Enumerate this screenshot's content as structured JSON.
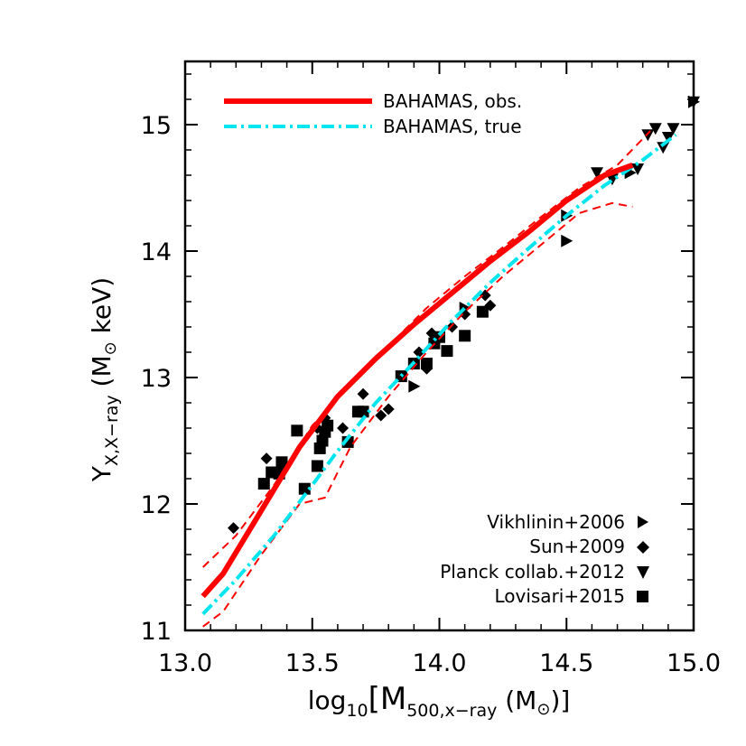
{
  "chart_data": {
    "type": "scatter",
    "xlabel": {
      "pre": "log",
      "sub": "10",
      "post": "[M",
      "sub2": "500,x−ray",
      "unit": " (M",
      "sun": "⊙",
      "end": ")]"
    },
    "ylabel": {
      "main": "Y",
      "sub": "X,X−ray",
      "unit": " (M",
      "sun": "⊙",
      "end": " keV)"
    },
    "xlim": [
      13.0,
      15.0
    ],
    "ylim": [
      11.0,
      15.5
    ],
    "xticks": [
      "13.0",
      "13.5",
      "14.0",
      "14.5",
      "15.0"
    ],
    "yticks": [
      "11",
      "12",
      "13",
      "14",
      "15"
    ],
    "legend_lines": [
      {
        "label": "BAHAMAS, obs.",
        "color": "#ff0000",
        "style": "solid"
      },
      {
        "label": "BAHAMAS, true",
        "color": "#00e5ee",
        "style": "dashdot"
      }
    ],
    "legend_points": [
      {
        "label": "Vikhlinin+2006",
        "marker": "triangle-right"
      },
      {
        "label": "Sun+2009",
        "marker": "diamond"
      },
      {
        "label": "Planck collab.+2012",
        "marker": "triangle-down"
      },
      {
        "label": "Lovisari+2015",
        "marker": "square"
      }
    ],
    "series": [
      {
        "name": "BAHAMAS, obs.",
        "kind": "line",
        "color": "#ff0000",
        "x": [
          13.07,
          13.15,
          13.3,
          13.45,
          13.6,
          13.75,
          13.9,
          14.05,
          14.2,
          14.35,
          14.5,
          14.65,
          14.76
        ],
        "y": [
          11.27,
          11.45,
          11.95,
          12.45,
          12.85,
          13.15,
          13.42,
          13.67,
          13.92,
          14.15,
          14.4,
          14.6,
          14.68
        ]
      },
      {
        "name": "BAHAMAS, true",
        "kind": "line",
        "color": "#00e5ee",
        "x": [
          13.07,
          13.2,
          13.35,
          13.5,
          13.6,
          13.75,
          13.9,
          14.05,
          14.2,
          14.35,
          14.5,
          14.65,
          14.8,
          14.93
        ],
        "y": [
          11.13,
          11.4,
          11.75,
          12.15,
          12.42,
          12.8,
          13.12,
          13.45,
          13.75,
          14.02,
          14.28,
          14.52,
          14.72,
          14.92
        ]
      },
      {
        "name": "upper scatter",
        "kind": "dashed",
        "color": "#ff0000",
        "x": [
          13.07,
          13.2,
          13.35,
          13.5,
          13.65,
          13.8,
          13.95,
          14.1,
          14.25,
          14.4,
          14.55,
          14.7,
          14.83
        ],
        "y": [
          11.5,
          11.75,
          12.15,
          12.62,
          12.95,
          13.25,
          13.55,
          13.8,
          14.03,
          14.27,
          14.5,
          14.68,
          14.95
        ]
      },
      {
        "name": "lower scatter",
        "kind": "dashed",
        "color": "#ff0000",
        "x": [
          13.07,
          13.15,
          13.3,
          13.45,
          13.55,
          13.65,
          13.8,
          13.95,
          14.1,
          14.25,
          14.4,
          14.55,
          14.68,
          14.76
        ],
        "y": [
          11.03,
          11.15,
          11.6,
          12.0,
          12.05,
          12.45,
          12.85,
          13.2,
          13.52,
          13.8,
          14.05,
          14.3,
          14.38,
          14.35
        ]
      },
      {
        "name": "Vikhlinin+2006",
        "kind": "points",
        "marker": "triangle-right",
        "x": [
          13.9,
          14.1,
          14.5,
          14.5,
          14.75,
          15.0
        ],
        "y": [
          12.93,
          13.55,
          14.28,
          14.08,
          14.62,
          15.18
        ]
      },
      {
        "name": "Sun+2009",
        "kind": "points",
        "marker": "diamond",
        "x": [
          13.19,
          13.32,
          13.52,
          13.55,
          13.62,
          13.7,
          13.77,
          13.8,
          13.92,
          13.95,
          13.97,
          14.05,
          14.1,
          14.18,
          14.2
        ],
        "y": [
          11.81,
          12.36,
          12.6,
          12.68,
          12.6,
          12.87,
          12.7,
          12.75,
          13.2,
          13.07,
          13.35,
          13.4,
          13.5,
          13.65,
          13.57
        ]
      },
      {
        "name": "Planck collab.+2012",
        "kind": "points",
        "marker": "triangle-down",
        "x": [
          14.62,
          14.68,
          14.78,
          14.82,
          14.85,
          14.88,
          14.9,
          14.92,
          15.0
        ],
        "y": [
          14.62,
          14.57,
          14.65,
          14.92,
          14.97,
          14.82,
          14.9,
          14.97,
          15.18
        ]
      },
      {
        "name": "Lovisari+2015",
        "kind": "points",
        "marker": "square",
        "x": [
          13.31,
          13.34,
          13.37,
          13.38,
          13.44,
          13.47,
          13.52,
          13.53,
          13.54,
          13.55,
          13.56,
          13.64,
          13.68,
          13.7,
          13.85,
          13.9,
          13.95,
          13.98,
          14.0,
          14.03,
          14.1,
          14.17
        ],
        "y": [
          12.16,
          12.25,
          12.24,
          12.33,
          12.58,
          12.12,
          12.3,
          12.44,
          12.5,
          12.57,
          12.62,
          12.49,
          12.73,
          12.73,
          13.01,
          13.11,
          13.11,
          13.27,
          13.32,
          13.21,
          13.33,
          13.52
        ]
      }
    ]
  }
}
